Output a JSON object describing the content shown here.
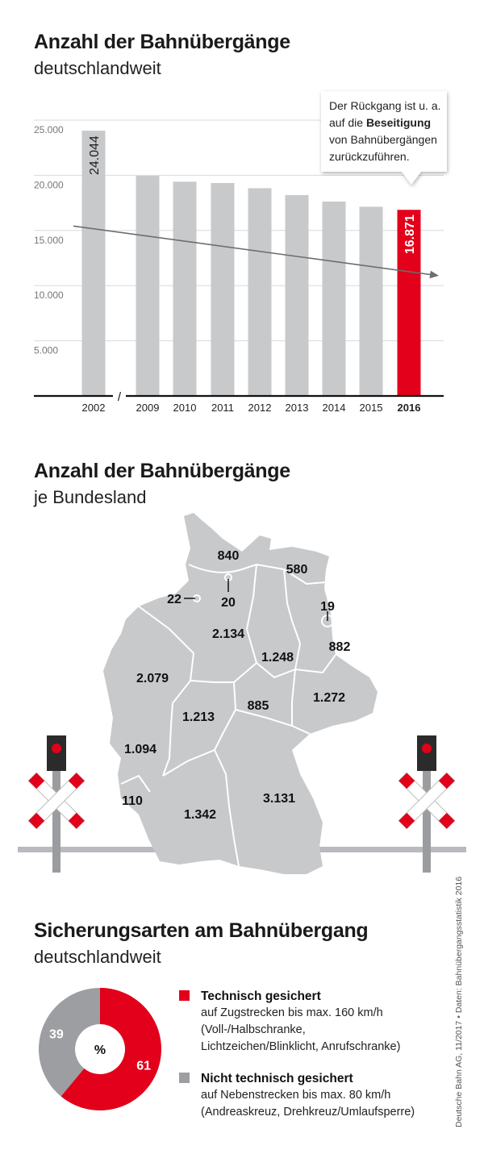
{
  "section1": {
    "title": "Anzahl der Bahnübergänge",
    "subtitle": "deutschlandweit"
  },
  "chart_data": [
    {
      "type": "bar",
      "categories": [
        "2002",
        "2009",
        "2010",
        "2011",
        "2012",
        "2013",
        "2014",
        "2015",
        "2016"
      ],
      "values": [
        24044,
        19950,
        19420,
        19300,
        18830,
        18210,
        17620,
        17150,
        16871
      ],
      "ylim": [
        0,
        25000
      ],
      "yticks": [
        5000,
        10000,
        15000,
        20000,
        25000
      ],
      "ytick_labels": [
        "5.000",
        "10.000",
        "15.000",
        "20.000",
        "25.000"
      ],
      "axis_break_label": "/",
      "data_labels": [
        {
          "index": 0,
          "text": "24.044"
        },
        {
          "index": 8,
          "text": "16.871"
        }
      ],
      "highlight_index": 8,
      "trend": {
        "from": 15400,
        "to": 10900
      },
      "callout": {
        "lines": [
          [
            {
              "text": "Der Rückgang ist u. a.",
              "bold": false
            }
          ],
          [
            {
              "text": "auf die ",
              "bold": false
            },
            {
              "text": "Beseitigung",
              "bold": true
            }
          ],
          [
            {
              "text": "von Bahnübergängen",
              "bold": false
            }
          ],
          [
            {
              "text": "zurückzuführen.",
              "bold": false
            }
          ]
        ]
      },
      "colors": {
        "bar": "#c8c9cb",
        "highlight": "#e2001a",
        "trend": "#6b6e72"
      },
      "grid": true
    },
    {
      "type": "pie",
      "labels": [
        "Technisch gesichert",
        "Nicht technisch gesichert"
      ],
      "values": [
        61,
        39
      ],
      "center_label": "%",
      "colors": [
        "#e2001a",
        "#9c9ea1"
      ]
    }
  ],
  "section2": {
    "title": "Anzahl der Bahnübergänge",
    "subtitle": "je Bundesland",
    "states": [
      {
        "value": "840"
      },
      {
        "value": "580"
      },
      {
        "value": "22"
      },
      {
        "value": "20"
      },
      {
        "value": "19"
      },
      {
        "value": "2.134"
      },
      {
        "value": "1.248"
      },
      {
        "value": "882"
      },
      {
        "value": "2.079"
      },
      {
        "value": "1.272"
      },
      {
        "value": "885"
      },
      {
        "value": "1.213"
      },
      {
        "value": "1.094"
      },
      {
        "value": "110"
      },
      {
        "value": "1.342"
      },
      {
        "value": "3.131"
      }
    ]
  },
  "section3": {
    "title": "Sicherungsarten am Bahnübergang",
    "subtitle": "deutschlandweit",
    "legend": [
      {
        "heading": "Technisch gesichert",
        "lines": [
          "auf Zugstrecken bis max. 160 km/h",
          "(Voll-/Halbschranke,",
          "Lichtzeichen/Blinklicht, Anrufschranke)"
        ]
      },
      {
        "heading": "Nicht technisch gesichert",
        "lines": [
          "auf Nebenstrecken bis max. 80 km/h",
          "(Andreaskreuz, Drehkreuz/Umlaufsperre)"
        ]
      }
    ]
  },
  "source": "Deutsche Bahn AG, 11/2017 • Daten: Bahnübergangsstatistik 2016"
}
